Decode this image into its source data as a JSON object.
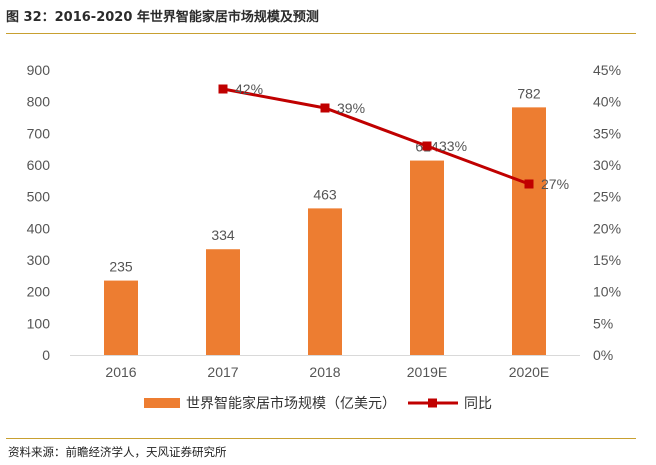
{
  "header": {
    "title": "图 32：2016-2020 年世界智能家居市场规模及预测"
  },
  "footer": {
    "source": "资料来源：前瞻经济学人，天风证券研究所"
  },
  "colors": {
    "bar": "#ed7d31",
    "line": "#c00000",
    "rule": "#c8a030",
    "grid": "#d9d9d9"
  },
  "chart_data": {
    "type": "bar",
    "categories": [
      "2016",
      "2017",
      "2018",
      "2019E",
      "2020E"
    ],
    "series": [
      {
        "name": "世界智能家居市场规模（亿美元）",
        "type": "bar",
        "axis": "left",
        "values": [
          235,
          334,
          463,
          614,
          782
        ],
        "labels": [
          "235",
          "334",
          "463",
          "614",
          "782"
        ]
      },
      {
        "name": "同比",
        "type": "line",
        "axis": "right",
        "values": [
          null,
          42,
          39,
          33,
          27
        ],
        "labels": [
          "",
          "42%",
          "39%",
          "33%",
          "27%"
        ]
      }
    ],
    "ylim_left": [
      0,
      900
    ],
    "yticks_left": [
      "0",
      "100",
      "200",
      "300",
      "400",
      "500",
      "600",
      "700",
      "800",
      "900"
    ],
    "ylim_right": [
      0,
      45
    ],
    "yticks_right": [
      "0%",
      "5%",
      "10%",
      "15%",
      "20%",
      "25%",
      "30%",
      "35%",
      "40%",
      "45%"
    ],
    "legend_position": "bottom",
    "grid": false
  }
}
